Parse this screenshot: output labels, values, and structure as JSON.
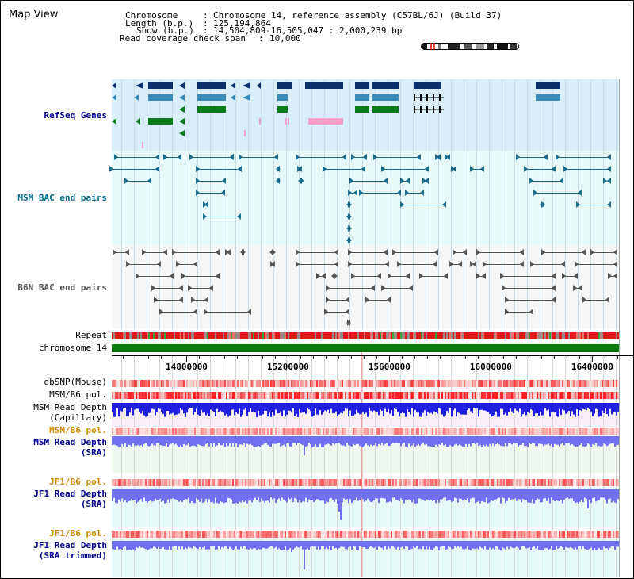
{
  "view": {
    "title": "Map View",
    "info": {
      "chromosome_label": "Chromosome",
      "chromosome_value": "Chromosome 14, reference assembly (C57BL/6J) (Build 37)",
      "length_label": "Length (b.p.)",
      "length_value": "125,194,864",
      "show_label": "Show (b.p.)",
      "show_value": "14,504,809-16,505,047 : 2,000,239 bp",
      "coverage_label": "Read coverage check span",
      "coverage_value": "10,000"
    }
  },
  "axis": {
    "start": 14504809,
    "end": 16505047,
    "ticks": [
      "14800000",
      "15200000",
      "15600000",
      "16000000",
      "16400000"
    ],
    "tick_values": [
      14800000,
      15200000,
      15600000,
      16000000,
      16400000
    ]
  },
  "tracks": {
    "refseq": "RefSeq Genes",
    "msm_bac": "MSM BAC end pairs",
    "b6n_bac": "B6N BAC end pairs",
    "repeat": "Repeat",
    "chromosome": "chromosome 14",
    "dbsnp": "dbSNP(Mouse)",
    "msm_b6_pol": "MSM/B6 pol.",
    "msm_depth_cap_1": "MSM Read Depth",
    "msm_depth_cap_2": "(Capillary)",
    "msm_b6_pol_2": "MSM/B6 pol.",
    "msm_depth_sra_1": "MSM Read Depth",
    "msm_depth_sra_2": "(SRA)",
    "jf1_b6_pol": "JF1/B6 pol.",
    "jf1_depth_sra_1": "JF1 Read Depth",
    "jf1_depth_sra_2": "(SRA)",
    "jf1_b6_pol_2": "JF1/B6 pol.",
    "jf1_depth_trim_1": "JF1 Read Depth",
    "jf1_depth_trim_2": "(SRA trimmed)"
  },
  "colors": {
    "refseq_bg": "#d8eef8",
    "bac_bg": "#e6f8f8",
    "b6n_bg": "#f6f6f6",
    "gene_navy": "#0a2f6a",
    "gene_steel": "#3a8ab8",
    "gene_green": "#0a7a1a",
    "gene_pink": "#f4a0c8",
    "msm_bac": "#1a6a8a",
    "b6n_bac": "#555555",
    "chromosome": "#0a7a0a",
    "depth_blue": "#2020e0",
    "depth_light": "#7070f0",
    "label_navy": "#00008b",
    "label_orange": "#d08c00",
    "label_teal": "#006a8a"
  }
}
